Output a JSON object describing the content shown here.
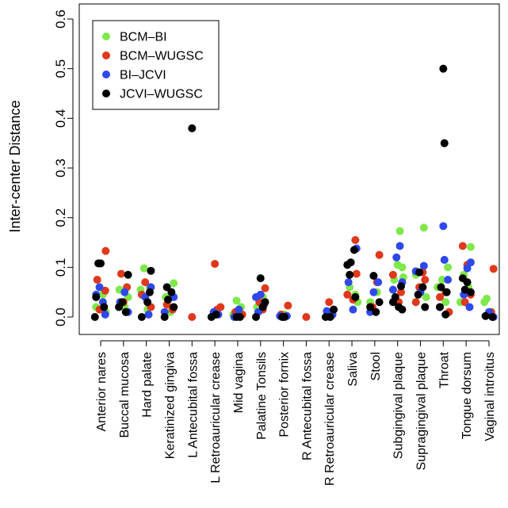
{
  "chart_data": {
    "type": "scatter",
    "ylabel": "Inter-center Distance",
    "xlabel": "",
    "ylim": [
      0,
      0.6
    ],
    "yticks": [
      "0.0",
      "0.1",
      "0.2",
      "0.3",
      "0.4",
      "0.5",
      "0.6"
    ],
    "categories": [
      "Anterior nares",
      "Buccal mucosa",
      "Hard palate",
      "Keratinized gingiva",
      "L Antecubital fossa",
      "L Retroauricular crease",
      "Mid vagina",
      "Palatine Tonsils",
      "Posterior fornix",
      "R Antecubital fossa",
      "R Retroauricular crease",
      "Saliva",
      "Stool",
      "Subgingival plaque",
      "Supragingival plaque",
      "Throat",
      "Tongue dorsum",
      "Vaginal introitus"
    ],
    "legend": {
      "position": "top-left",
      "box": true
    },
    "grid": false,
    "series": [
      {
        "name": "BCM–BI",
        "color": "#7FE84A",
        "points": [
          {
            "c": 0,
            "o": -0.2,
            "y": 0.02
          },
          {
            "c": 0,
            "o": 0.1,
            "y": 0.045
          },
          {
            "c": 0,
            "o": 0.22,
            "y": 0.01
          },
          {
            "c": 1,
            "o": -0.18,
            "y": 0.055
          },
          {
            "c": 1,
            "o": 0.05,
            "y": 0.02
          },
          {
            "c": 1,
            "o": 0.2,
            "y": 0.04
          },
          {
            "c": 2,
            "o": -0.1,
            "y": 0.098
          },
          {
            "c": 2,
            "o": 0.15,
            "y": 0.06
          },
          {
            "c": 2,
            "o": -0.25,
            "y": 0.055
          },
          {
            "c": 2,
            "o": 0.05,
            "y": 0.015
          },
          {
            "c": 3,
            "o": -0.15,
            "y": 0.04
          },
          {
            "c": 3,
            "o": 0.2,
            "y": 0.068
          },
          {
            "c": 3,
            "o": 0.05,
            "y": 0.01
          },
          {
            "c": 6,
            "o": -0.05,
            "y": 0.033
          },
          {
            "c": 6,
            "o": 0.15,
            "y": 0.02
          },
          {
            "c": 6,
            "o": -0.2,
            "y": 0.005
          },
          {
            "c": 7,
            "o": 0.1,
            "y": 0.04
          },
          {
            "c": 7,
            "o": -0.15,
            "y": 0.02
          },
          {
            "c": 8,
            "o": 0.05,
            "y": 0.005
          },
          {
            "c": 10,
            "o": 0.05,
            "y": 0.01
          },
          {
            "c": 11,
            "o": -0.1,
            "y": 0.06
          },
          {
            "c": 11,
            "o": 0.15,
            "y": 0.045
          },
          {
            "c": 11,
            "o": 0.25,
            "y": 0.03
          },
          {
            "c": 12,
            "o": 0.1,
            "y": 0.05
          },
          {
            "c": 12,
            "o": -0.2,
            "y": 0.03
          },
          {
            "c": 13,
            "o": 0.1,
            "y": 0.173
          },
          {
            "c": 13,
            "o": 0.0,
            "y": 0.105
          },
          {
            "c": 13,
            "o": 0.2,
            "y": 0.1
          },
          {
            "c": 13,
            "o": -0.15,
            "y": 0.075
          },
          {
            "c": 13,
            "o": 0.25,
            "y": 0.08
          },
          {
            "c": 14,
            "o": 0.15,
            "y": 0.18
          },
          {
            "c": 14,
            "o": -0.2,
            "y": 0.085
          },
          {
            "c": 14,
            "o": 0.05,
            "y": 0.06
          },
          {
            "c": 14,
            "o": 0.25,
            "y": 0.04
          },
          {
            "c": 15,
            "o": -0.05,
            "y": 0.075
          },
          {
            "c": 15,
            "o": 0.2,
            "y": 0.1
          },
          {
            "c": 15,
            "o": -0.25,
            "y": 0.06
          },
          {
            "c": 15,
            "o": 0.1,
            "y": 0.03
          },
          {
            "c": 16,
            "o": 0.2,
            "y": 0.141
          },
          {
            "c": 16,
            "o": -0.1,
            "y": 0.085
          },
          {
            "c": 16,
            "o": 0.1,
            "y": 0.06
          },
          {
            "c": 16,
            "o": -0.25,
            "y": 0.03
          },
          {
            "c": 17,
            "o": -0.1,
            "y": 0.037
          },
          {
            "c": 17,
            "o": -0.2,
            "y": 0.03
          }
        ]
      },
      {
        "name": "BCM–WUGSC",
        "color": "#E0381A",
        "points": [
          {
            "c": 0,
            "o": 0.22,
            "y": 0.133
          },
          {
            "c": 0,
            "o": -0.15,
            "y": 0.075
          },
          {
            "c": 0,
            "o": 0.2,
            "y": 0.053
          },
          {
            "c": 0,
            "o": -0.05,
            "y": 0.015
          },
          {
            "c": 1,
            "o": -0.1,
            "y": 0.087
          },
          {
            "c": 1,
            "o": 0.15,
            "y": 0.06
          },
          {
            "c": 1,
            "o": 0.0,
            "y": 0.03
          },
          {
            "c": 2,
            "o": -0.05,
            "y": 0.07
          },
          {
            "c": 2,
            "o": 0.2,
            "y": 0.02
          },
          {
            "c": 2,
            "o": -0.2,
            "y": 0.045
          },
          {
            "c": 3,
            "o": -0.1,
            "y": 0.025
          },
          {
            "c": 3,
            "o": 0.15,
            "y": 0.015
          },
          {
            "c": 4,
            "o": 0.0,
            "y": 0.0
          },
          {
            "c": 5,
            "o": 0.0,
            "y": 0.107
          },
          {
            "c": 5,
            "o": 0.25,
            "y": 0.02
          },
          {
            "c": 5,
            "o": 0.1,
            "y": 0.015
          },
          {
            "c": 6,
            "o": 0.2,
            "y": 0.005
          },
          {
            "c": 6,
            "o": -0.1,
            "y": 0.01
          },
          {
            "c": 7,
            "o": 0.2,
            "y": 0.058
          },
          {
            "c": 7,
            "o": -0.05,
            "y": 0.03
          },
          {
            "c": 7,
            "o": 0.1,
            "y": 0.015
          },
          {
            "c": 8,
            "o": 0.2,
            "y": 0.023
          },
          {
            "c": 8,
            "o": -0.1,
            "y": 0.005
          },
          {
            "c": 9,
            "o": 0.0,
            "y": 0.0
          },
          {
            "c": 10,
            "o": 0.0,
            "y": 0.03
          },
          {
            "c": 10,
            "o": 0.2,
            "y": 0.015
          },
          {
            "c": 11,
            "o": 0.15,
            "y": 0.155
          },
          {
            "c": 11,
            "o": 0.2,
            "y": 0.087
          },
          {
            "c": 11,
            "o": -0.2,
            "y": 0.045
          },
          {
            "c": 11,
            "o": 0.05,
            "y": 0.035
          },
          {
            "c": 12,
            "o": 0.2,
            "y": 0.125
          },
          {
            "c": 12,
            "o": 0.1,
            "y": 0.07
          },
          {
            "c": 12,
            "o": -0.1,
            "y": 0.02
          },
          {
            "c": 13,
            "o": -0.2,
            "y": 0.085
          },
          {
            "c": 13,
            "o": 0.15,
            "y": 0.05
          },
          {
            "c": 13,
            "o": 0.05,
            "y": 0.03
          },
          {
            "c": 14,
            "o": 0.1,
            "y": 0.09
          },
          {
            "c": 14,
            "o": -0.05,
            "y": 0.06
          },
          {
            "c": 14,
            "o": 0.2,
            "y": 0.075
          },
          {
            "c": 14,
            "o": -0.2,
            "y": 0.03
          },
          {
            "c": 15,
            "o": 0.1,
            "y": 0.05
          },
          {
            "c": 15,
            "o": -0.15,
            "y": 0.04
          },
          {
            "c": 15,
            "o": 0.25,
            "y": 0.01
          },
          {
            "c": 16,
            "o": -0.15,
            "y": 0.143
          },
          {
            "c": 16,
            "o": 0.05,
            "y": 0.105
          },
          {
            "c": 16,
            "o": 0.2,
            "y": 0.045
          },
          {
            "c": 16,
            "o": -0.05,
            "y": 0.03
          },
          {
            "c": 17,
            "o": 0.2,
            "y": 0.097
          },
          {
            "c": 17,
            "o": 0.1,
            "y": 0.01
          }
        ]
      },
      {
        "name": "BI–JCVI",
        "color": "#2F48EC",
        "points": [
          {
            "c": 0,
            "o": -0.05,
            "y": 0.06
          },
          {
            "c": 0,
            "o": 0.1,
            "y": 0.03
          },
          {
            "c": 0,
            "o": -0.2,
            "y": 0.045
          },
          {
            "c": 0,
            "o": 0.2,
            "y": 0.005
          },
          {
            "c": 1,
            "o": 0.05,
            "y": 0.05
          },
          {
            "c": 1,
            "o": -0.15,
            "y": 0.03
          },
          {
            "c": 1,
            "o": 0.2,
            "y": 0.01
          },
          {
            "c": 2,
            "o": 0.2,
            "y": 0.06
          },
          {
            "c": 2,
            "o": -0.05,
            "y": 0.04
          },
          {
            "c": 2,
            "o": 0.1,
            "y": 0.005
          },
          {
            "c": 3,
            "o": 0.2,
            "y": 0.04
          },
          {
            "c": 3,
            "o": -0.2,
            "y": 0.01
          },
          {
            "c": 5,
            "o": -0.05,
            "y": 0.01
          },
          {
            "c": 5,
            "o": 0.15,
            "y": 0.005
          },
          {
            "c": 6,
            "o": 0.05,
            "y": 0.015
          },
          {
            "c": 6,
            "o": -0.15,
            "y": 0.0
          },
          {
            "c": 7,
            "o": -0.2,
            "y": 0.04
          },
          {
            "c": 7,
            "o": 0.0,
            "y": 0.045
          },
          {
            "c": 7,
            "o": 0.15,
            "y": 0.025
          },
          {
            "c": 7,
            "o": -0.1,
            "y": 0.01
          },
          {
            "c": 8,
            "o": -0.15,
            "y": 0.002
          },
          {
            "c": 8,
            "o": 0.15,
            "y": 0.002
          },
          {
            "c": 10,
            "o": -0.1,
            "y": 0.012
          },
          {
            "c": 10,
            "o": 0.15,
            "y": 0.005
          },
          {
            "c": 11,
            "o": 0.2,
            "y": 0.138
          },
          {
            "c": 11,
            "o": -0.15,
            "y": 0.07
          },
          {
            "c": 11,
            "o": 0.05,
            "y": 0.015
          },
          {
            "c": 12,
            "o": 0.15,
            "y": 0.07
          },
          {
            "c": 12,
            "o": -0.05,
            "y": 0.05
          },
          {
            "c": 12,
            "o": -0.2,
            "y": 0.01
          },
          {
            "c": 13,
            "o": 0.1,
            "y": 0.143
          },
          {
            "c": 13,
            "o": -0.05,
            "y": 0.12
          },
          {
            "c": 13,
            "o": -0.2,
            "y": 0.055
          },
          {
            "c": 13,
            "o": 0.2,
            "y": 0.07
          },
          {
            "c": 14,
            "o": 0.15,
            "y": 0.103
          },
          {
            "c": 14,
            "o": -0.2,
            "y": 0.092
          },
          {
            "c": 14,
            "o": 0.0,
            "y": 0.05
          },
          {
            "c": 15,
            "o": 0.0,
            "y": 0.183
          },
          {
            "c": 15,
            "o": 0.05,
            "y": 0.115
          },
          {
            "c": 15,
            "o": 0.2,
            "y": 0.075
          },
          {
            "c": 15,
            "o": -0.15,
            "y": 0.02
          },
          {
            "c": 16,
            "o": 0.2,
            "y": 0.11
          },
          {
            "c": 16,
            "o": 0.05,
            "y": 0.098
          },
          {
            "c": 16,
            "o": -0.1,
            "y": 0.045
          },
          {
            "c": 16,
            "o": 0.15,
            "y": 0.02
          },
          {
            "c": 17,
            "o": 0.0,
            "y": 0.01
          },
          {
            "c": 17,
            "o": 0.2,
            "y": 0.0
          }
        ]
      },
      {
        "name": "JCVI–WUGSC",
        "color": "#000000",
        "points": [
          {
            "c": 0,
            "o": -0.1,
            "y": 0.108
          },
          {
            "c": 0,
            "o": 0.0,
            "y": 0.108
          },
          {
            "c": 0,
            "o": -0.2,
            "y": 0.04
          },
          {
            "c": 0,
            "o": 0.15,
            "y": 0.02
          },
          {
            "c": 0,
            "o": -0.25,
            "y": 0.0
          },
          {
            "c": 1,
            "o": 0.2,
            "y": 0.085
          },
          {
            "c": 1,
            "o": -0.05,
            "y": 0.03
          },
          {
            "c": 1,
            "o": 0.1,
            "y": 0.01
          },
          {
            "c": 1,
            "o": -0.2,
            "y": 0.02
          },
          {
            "c": 2,
            "o": 0.2,
            "y": 0.093
          },
          {
            "c": 2,
            "o": 0.05,
            "y": 0.03
          },
          {
            "c": 2,
            "o": -0.2,
            "y": 0.0
          },
          {
            "c": 2,
            "o": 0.15,
            "y": 0.05
          },
          {
            "c": 3,
            "o": -0.1,
            "y": 0.06
          },
          {
            "c": 3,
            "o": 0.1,
            "y": 0.05
          },
          {
            "c": 3,
            "o": -0.05,
            "y": 0.035
          },
          {
            "c": 3,
            "o": 0.2,
            "y": 0.02
          },
          {
            "c": 3,
            "o": -0.2,
            "y": 0.0
          },
          {
            "c": 4,
            "o": 0.0,
            "y": 0.38
          },
          {
            "c": 5,
            "o": 0.05,
            "y": 0.005
          },
          {
            "c": 5,
            "o": -0.15,
            "y": 0.0
          },
          {
            "c": 6,
            "o": -0.05,
            "y": 0.0
          },
          {
            "c": 6,
            "o": 0.1,
            "y": 0.0
          },
          {
            "c": 7,
            "o": 0.0,
            "y": 0.078
          },
          {
            "c": 7,
            "o": 0.2,
            "y": 0.03
          },
          {
            "c": 7,
            "o": 0.1,
            "y": 0.02
          },
          {
            "c": 7,
            "o": -0.2,
            "y": 0.0
          },
          {
            "c": 8,
            "o": -0.05,
            "y": 0.0
          },
          {
            "c": 8,
            "o": 0.05,
            "y": 0.0
          },
          {
            "c": 10,
            "o": -0.15,
            "y": 0.0
          },
          {
            "c": 10,
            "o": 0.2,
            "y": 0.015
          },
          {
            "c": 10,
            "o": 0.05,
            "y": 0.0
          },
          {
            "c": 11,
            "o": -0.05,
            "y": 0.11
          },
          {
            "c": 11,
            "o": -0.2,
            "y": 0.105
          },
          {
            "c": 11,
            "o": 0.1,
            "y": 0.135
          },
          {
            "c": 11,
            "o": -0.1,
            "y": 0.085
          },
          {
            "c": 11,
            "o": 0.15,
            "y": 0.04
          },
          {
            "c": 12,
            "o": -0.05,
            "y": 0.083
          },
          {
            "c": 12,
            "o": 0.2,
            "y": 0.03
          },
          {
            "c": 12,
            "o": -0.2,
            "y": 0.02
          },
          {
            "c": 12,
            "o": 0.05,
            "y": 0.01
          },
          {
            "c": 13,
            "o": 0.15,
            "y": 0.062
          },
          {
            "c": 13,
            "o": -0.1,
            "y": 0.04
          },
          {
            "c": 13,
            "o": 0.05,
            "y": 0.02
          },
          {
            "c": 13,
            "o": -0.2,
            "y": 0.03
          },
          {
            "c": 13,
            "o": 0.2,
            "y": 0.015
          },
          {
            "c": 14,
            "o": -0.05,
            "y": 0.09
          },
          {
            "c": 14,
            "o": 0.1,
            "y": 0.06
          },
          {
            "c": 14,
            "o": 0.2,
            "y": 0.02
          },
          {
            "c": 14,
            "o": -0.1,
            "y": 0.045
          },
          {
            "c": 15,
            "o": 0.0,
            "y": 0.5
          },
          {
            "c": 15,
            "o": 0.05,
            "y": 0.35
          },
          {
            "c": 15,
            "o": -0.1,
            "y": 0.06
          },
          {
            "c": 15,
            "o": 0.15,
            "y": 0.05
          },
          {
            "c": 15,
            "o": -0.15,
            "y": 0.02
          },
          {
            "c": 15,
            "o": 0.1,
            "y": 0.005
          },
          {
            "c": 16,
            "o": -0.15,
            "y": 0.078
          },
          {
            "c": 16,
            "o": 0.05,
            "y": 0.07
          },
          {
            "c": 16,
            "o": -0.05,
            "y": 0.055
          },
          {
            "c": 16,
            "o": 0.2,
            "y": 0.05
          },
          {
            "c": 17,
            "o": -0.15,
            "y": 0.002
          },
          {
            "c": 17,
            "o": 0.15,
            "y": 0.0
          }
        ]
      }
    ]
  }
}
